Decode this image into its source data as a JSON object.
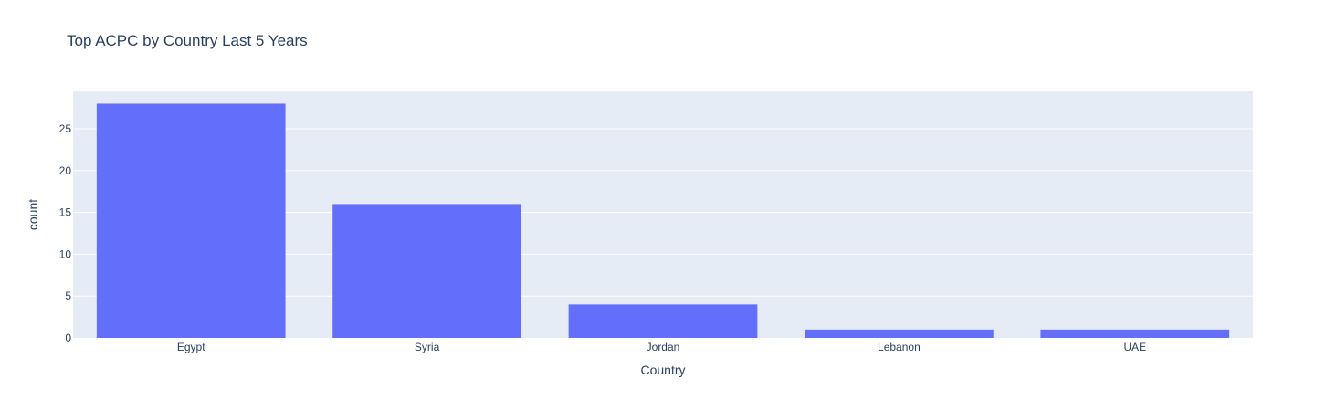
{
  "chart_data": {
    "type": "bar",
    "title": "Top ACPC by Country Last 5 Years",
    "xlabel": "Country",
    "ylabel": "count",
    "categories": [
      "Egypt",
      "Syria",
      "Jordan",
      "Lebanon",
      "UAE"
    ],
    "values": [
      28,
      16,
      4,
      1,
      1
    ],
    "ylim": [
      0,
      29.47
    ],
    "yticks": [
      0,
      5,
      10,
      15,
      20,
      25
    ],
    "grid": true,
    "legend": "none"
  },
  "colors": {
    "bar": "#636efa",
    "plot_background": "#e5ecf6",
    "gridline": "#ffffff",
    "text": "#2a3f5f",
    "page_background": "#ffffff"
  }
}
